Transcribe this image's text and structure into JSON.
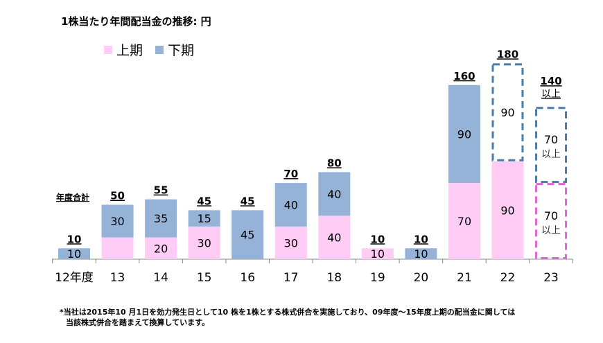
{
  "chart_data": {
    "type": "bar",
    "stacked": true,
    "title": "1株当たり年間配当金の推移: 円",
    "categories": [
      "12年度",
      "13",
      "14",
      "15",
      "16",
      "17",
      "18",
      "19",
      "20",
      "21",
      "22",
      "23"
    ],
    "series": [
      {
        "name": "上期",
        "color": "#ffccf5",
        "values": [
          0,
          20,
          20,
          30,
          0,
          30,
          40,
          10,
          0,
          70,
          90,
          70
        ],
        "labels": [
          "",
          "",
          "20",
          "30",
          "",
          "30",
          "40",
          "10",
          "",
          "70",
          "90",
          "70"
        ],
        "forecast": [
          false,
          false,
          false,
          false,
          false,
          false,
          false,
          false,
          false,
          false,
          false,
          true
        ]
      },
      {
        "name": "下期",
        "color": "#95b3d7",
        "values": [
          10,
          30,
          35,
          15,
          45,
          40,
          40,
          0,
          10,
          90,
          90,
          70
        ],
        "labels": [
          "10",
          "30",
          "35",
          "15",
          "45",
          "40",
          "40",
          "",
          "10",
          "90",
          "90",
          "70"
        ],
        "forecast": [
          false,
          false,
          false,
          false,
          false,
          false,
          false,
          false,
          false,
          false,
          true,
          true
        ]
      }
    ],
    "totals": [
      "10",
      "50",
      "55",
      "45",
      "45",
      "70",
      "80",
      "10",
      "10",
      "160",
      "180",
      "140"
    ],
    "total_suffix_23": "以上",
    "segment_suffix_23": "以上",
    "totals_label": "年度合計",
    "forecast_colors": {
      "上期": "#e066d6",
      "下期": "#4a7aa8"
    },
    "ylim": [
      0,
      185
    ],
    "grid": false,
    "legend": "top-left"
  },
  "footnote": {
    "line1": "*当社は2015年10 月1日を効力発生日として10 株を1株とする株式併合を実施しており、09年度～15年度上期の配当金に関しては",
    "line2": "当該株式併合を踏まえて換算しています。"
  }
}
